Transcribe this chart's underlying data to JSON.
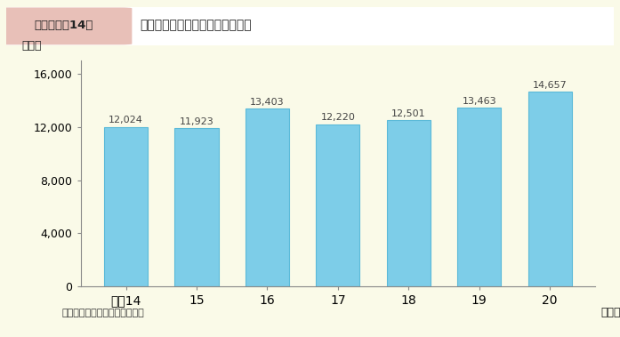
{
  "title_box_label": "第１－５－14図",
  "title_text": "ストーカー事案に関する認知件数",
  "categories": [
    "平成14",
    "15",
    "16",
    "17",
    "18",
    "19",
    "20"
  ],
  "values": [
    12024,
    11923,
    13403,
    12220,
    12501,
    13463,
    14657
  ],
  "bar_color": "#7dcde8",
  "bar_edge_color": "#5bbad8",
  "ylabel": "（件）",
  "xlabel_suffix": "（年）",
  "yticks": [
    0,
    4000,
    8000,
    12000,
    16000
  ],
  "ylim": [
    0,
    17000
  ],
  "note": "（備考）警察庁資料より作成。",
  "background_color": "#fafae8",
  "title_outer_bg": "#f5f5f5",
  "title_label_bg": "#e8c8c0",
  "title_right_bg": "#ffffff",
  "value_label_color": "#444444",
  "value_label_fontsize": 8,
  "axis_label_fontsize": 9,
  "tick_label_fontsize": 9,
  "note_fontsize": 8,
  "title_fontsize": 10,
  "title_label_fontsize": 9.5
}
